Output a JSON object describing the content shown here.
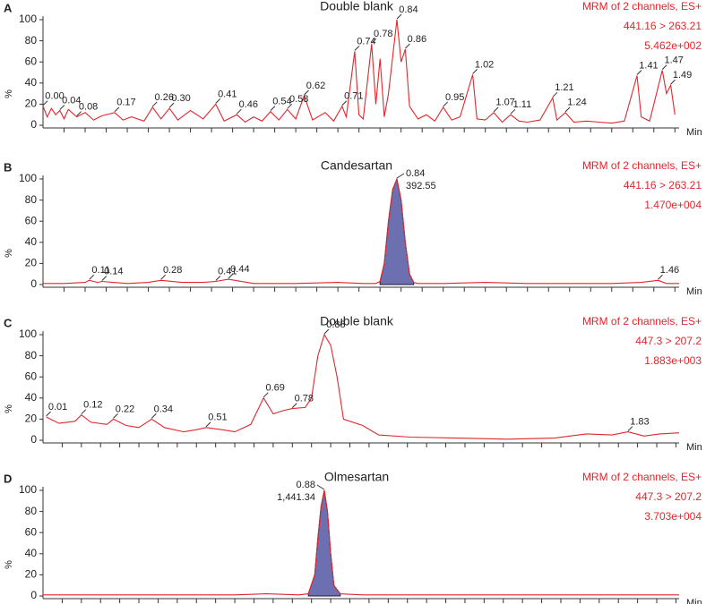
{
  "chart_data": [
    {
      "type": "line",
      "label": "A",
      "title": "Double blank",
      "info": [
        "MRM of 2 channels, ES+",
        "441.16 > 263.21",
        "5.462e+002"
      ],
      "y_label": "%",
      "x_label": "Min",
      "xlim": [
        0,
        1.51
      ],
      "ylim": [
        0,
        100
      ],
      "yticks": [
        0,
        20,
        40,
        60,
        80,
        100
      ],
      "xticks": [
        0.05,
        0.1,
        0.15,
        0.2,
        0.25,
        0.3,
        0.35,
        0.4,
        0.45,
        0.5,
        0.55,
        0.6,
        0.65,
        0.7,
        0.75,
        0.8,
        0.85,
        0.9,
        0.95,
        1.0,
        1.05,
        1.1,
        1.15,
        1.2,
        1.25,
        1.3,
        1.35,
        1.4,
        1.45,
        1.5
      ],
      "color": "#e3262d",
      "x": [
        0,
        0.01,
        0.02,
        0.03,
        0.04,
        0.05,
        0.06,
        0.08,
        0.1,
        0.12,
        0.14,
        0.17,
        0.19,
        0.21,
        0.24,
        0.26,
        0.28,
        0.3,
        0.32,
        0.35,
        0.38,
        0.41,
        0.43,
        0.46,
        0.48,
        0.5,
        0.52,
        0.54,
        0.56,
        0.58,
        0.6,
        0.62,
        0.64,
        0.67,
        0.69,
        0.71,
        0.72,
        0.74,
        0.75,
        0.76,
        0.78,
        0.79,
        0.8,
        0.81,
        0.82,
        0.84,
        0.85,
        0.86,
        0.87,
        0.89,
        0.91,
        0.93,
        0.95,
        0.97,
        0.99,
        1.02,
        1.03,
        1.05,
        1.07,
        1.09,
        1.11,
        1.13,
        1.15,
        1.18,
        1.21,
        1.22,
        1.24,
        1.26,
        1.29,
        1.32,
        1.35,
        1.38,
        1.41,
        1.42,
        1.44,
        1.47,
        1.48,
        1.49,
        1.5
      ],
      "values": [
        18,
        8,
        16,
        10,
        14,
        6,
        15,
        8,
        12,
        5,
        9,
        12,
        5,
        8,
        4,
        17,
        6,
        16,
        5,
        14,
        6,
        20,
        4,
        10,
        3,
        8,
        4,
        13,
        5,
        15,
        6,
        28,
        5,
        12,
        4,
        18,
        8,
        70,
        10,
        6,
        77,
        20,
        63,
        8,
        30,
        100,
        60,
        72,
        18,
        6,
        10,
        4,
        17,
        5,
        8,
        48,
        6,
        5,
        12,
        3,
        10,
        4,
        3,
        5,
        26,
        5,
        12,
        3,
        4,
        3,
        2,
        4,
        47,
        8,
        4,
        52,
        30,
        38,
        10
      ],
      "annotations": [
        {
          "x": 0.0,
          "y": 18,
          "label": "0.00"
        },
        {
          "x": 0.04,
          "y": 14,
          "label": "0.04"
        },
        {
          "x": 0.08,
          "y": 8,
          "label": "0.08"
        },
        {
          "x": 0.17,
          "y": 12,
          "label": "0.17"
        },
        {
          "x": 0.26,
          "y": 17,
          "label": "0.26"
        },
        {
          "x": 0.3,
          "y": 16,
          "label": "0.30"
        },
        {
          "x": 0.41,
          "y": 20,
          "label": "0.41"
        },
        {
          "x": 0.46,
          "y": 10,
          "label": "0.46"
        },
        {
          "x": 0.54,
          "y": 13,
          "label": "0.54"
        },
        {
          "x": 0.58,
          "y": 15,
          "label": "0.58"
        },
        {
          "x": 0.62,
          "y": 28,
          "label": "0.62"
        },
        {
          "x": 0.71,
          "y": 18,
          "label": "0.71"
        },
        {
          "x": 0.74,
          "y": 70,
          "label": "0.74"
        },
        {
          "x": 0.78,
          "y": 77,
          "label": "0.78"
        },
        {
          "x": 0.84,
          "y": 100,
          "label": "0.84"
        },
        {
          "x": 0.86,
          "y": 72,
          "label": "0.86"
        },
        {
          "x": 0.95,
          "y": 17,
          "label": "0.95"
        },
        {
          "x": 1.02,
          "y": 48,
          "label": "1.02"
        },
        {
          "x": 1.07,
          "y": 12,
          "label": "1.07"
        },
        {
          "x": 1.11,
          "y": 10,
          "label": "1.11"
        },
        {
          "x": 1.21,
          "y": 26,
          "label": "1.21"
        },
        {
          "x": 1.24,
          "y": 12,
          "label": "1.24"
        },
        {
          "x": 1.41,
          "y": 47,
          "label": "1.41"
        },
        {
          "x": 1.47,
          "y": 52,
          "label": "1.47"
        },
        {
          "x": 1.49,
          "y": 38,
          "label": "1.49"
        }
      ]
    },
    {
      "type": "line",
      "label": "B",
      "title": "Candesartan",
      "info": [
        "MRM of 2 channels, ES+",
        "441.16 > 263.21",
        "1.470e+004"
      ],
      "y_label": "%",
      "x_label": "Min",
      "xlim": [
        0,
        1.51
      ],
      "ylim": [
        0,
        100
      ],
      "yticks": [
        0,
        20,
        40,
        60,
        80,
        100
      ],
      "xticks": [
        0.05,
        0.1,
        0.15,
        0.2,
        0.25,
        0.3,
        0.35,
        0.4,
        0.45,
        0.5,
        0.55,
        0.6,
        0.65,
        0.7,
        0.75,
        0.8,
        0.85,
        0.9,
        0.95,
        1.0,
        1.05,
        1.1,
        1.15,
        1.2,
        1.25,
        1.3,
        1.35,
        1.4,
        1.45,
        1.5
      ],
      "color": "#e3262d",
      "fill": {
        "color": "#6d70b0",
        "from": 0.8,
        "to": 0.88
      },
      "x": [
        0,
        0.05,
        0.1,
        0.11,
        0.13,
        0.14,
        0.2,
        0.25,
        0.28,
        0.33,
        0.38,
        0.41,
        0.44,
        0.5,
        0.6,
        0.7,
        0.76,
        0.79,
        0.8,
        0.81,
        0.82,
        0.83,
        0.84,
        0.85,
        0.86,
        0.87,
        0.88,
        0.89,
        0.95,
        1.05,
        1.15,
        1.25,
        1.35,
        1.42,
        1.46,
        1.48,
        1.51
      ],
      "values": [
        1,
        1,
        2,
        4,
        2,
        3,
        1,
        2,
        4,
        2,
        2,
        3,
        5,
        1,
        1,
        2,
        1,
        1,
        3,
        20,
        60,
        90,
        100,
        80,
        40,
        10,
        2,
        1,
        1,
        2,
        1,
        1,
        1,
        2,
        4,
        1,
        1
      ],
      "annotations": [
        {
          "x": 0.84,
          "y": 100,
          "label": "0.84",
          "area": "392.55"
        },
        {
          "x": 0.11,
          "y": 4,
          "label": "0.11"
        },
        {
          "x": 0.14,
          "y": 3,
          "label": "0.14"
        },
        {
          "x": 0.28,
          "y": 4,
          "label": "0.28"
        },
        {
          "x": 0.41,
          "y": 3,
          "label": "0.41"
        },
        {
          "x": 0.44,
          "y": 5,
          "label": "0.44"
        },
        {
          "x": 1.46,
          "y": 4,
          "label": "1.46"
        }
      ]
    },
    {
      "type": "line",
      "label": "C",
      "title": "Double blank",
      "info": [
        "MRM of 2 channels, ES+",
        "447.3 > 207.2",
        "1.883e+003"
      ],
      "y_label": "%",
      "x_label": "Min",
      "xlim": [
        0,
        1.99
      ],
      "ylim": [
        0,
        100
      ],
      "yticks": [
        0,
        20,
        40,
        60,
        80,
        100
      ],
      "xticks": [
        0.06,
        0.12,
        0.18,
        0.24,
        0.3,
        0.36,
        0.42,
        0.48,
        0.54,
        0.6,
        0.66,
        0.72,
        0.78,
        0.84,
        0.9,
        0.96,
        1.02,
        1.08,
        1.14,
        1.2,
        1.26,
        1.32,
        1.38,
        1.44,
        1.5,
        1.56,
        1.62,
        1.68,
        1.74,
        1.8,
        1.86,
        1.92,
        1.98
      ],
      "color": "#e3262d",
      "x": [
        0.01,
        0.05,
        0.1,
        0.12,
        0.15,
        0.2,
        0.22,
        0.26,
        0.3,
        0.34,
        0.38,
        0.44,
        0.48,
        0.51,
        0.56,
        0.6,
        0.65,
        0.69,
        0.72,
        0.75,
        0.78,
        0.82,
        0.84,
        0.86,
        0.88,
        0.9,
        0.92,
        0.94,
        1.0,
        1.05,
        1.15,
        1.3,
        1.45,
        1.6,
        1.7,
        1.78,
        1.83,
        1.88,
        1.93,
        1.99
      ],
      "values": [
        22,
        16,
        18,
        24,
        17,
        15,
        20,
        14,
        12,
        20,
        12,
        8,
        10,
        12,
        10,
        8,
        15,
        40,
        25,
        28,
        30,
        31,
        40,
        80,
        100,
        90,
        60,
        20,
        14,
        5,
        3,
        2,
        1,
        2,
        6,
        5,
        8,
        4,
        6,
        7
      ],
      "annotations": [
        {
          "x": 0.01,
          "y": 22,
          "label": "0.01"
        },
        {
          "x": 0.12,
          "y": 24,
          "label": "0.12"
        },
        {
          "x": 0.22,
          "y": 20,
          "label": "0.22"
        },
        {
          "x": 0.34,
          "y": 20,
          "label": "0.34"
        },
        {
          "x": 0.51,
          "y": 12,
          "label": "0.51"
        },
        {
          "x": 0.69,
          "y": 40,
          "label": "0.69"
        },
        {
          "x": 0.78,
          "y": 30,
          "label": "0.78"
        },
        {
          "x": 0.88,
          "y": 100,
          "label": "0.88"
        },
        {
          "x": 1.83,
          "y": 8,
          "label": "1.83"
        }
      ]
    },
    {
      "type": "line",
      "label": "D",
      "title": "Olmesartan",
      "info": [
        "MRM of 2 channels, ES+",
        "447.3 > 207.2",
        "3.703e+004"
      ],
      "y_label": "%",
      "x_label": "Min",
      "xlim": [
        0,
        1.99
      ],
      "ylim": [
        0,
        100
      ],
      "yticks": [
        0,
        20,
        40,
        60,
        80,
        100
      ],
      "xticks": [
        0.06,
        0.12,
        0.18,
        0.24,
        0.3,
        0.36,
        0.42,
        0.48,
        0.54,
        0.6,
        0.66,
        0.72,
        0.78,
        0.84,
        0.9,
        0.96,
        1.02,
        1.08,
        1.14,
        1.2,
        1.26,
        1.32,
        1.38,
        1.44,
        1.5,
        1.56,
        1.62,
        1.68,
        1.74,
        1.8,
        1.86,
        1.92,
        1.98
      ],
      "color": "#e3262d",
      "fill": {
        "color": "#6d70b0",
        "from": 0.83,
        "to": 0.93
      },
      "x": [
        0,
        0.2,
        0.4,
        0.6,
        0.7,
        0.8,
        0.83,
        0.85,
        0.86,
        0.87,
        0.88,
        0.89,
        0.9,
        0.91,
        0.93,
        1.0,
        1.3,
        1.6,
        1.99
      ],
      "values": [
        1,
        1,
        1,
        1,
        2,
        1,
        2,
        20,
        55,
        85,
        100,
        80,
        40,
        10,
        2,
        1,
        1,
        1,
        1
      ],
      "annotations": [
        {
          "x": 0.88,
          "y": 100,
          "label": "0.88",
          "area": "1,441.34"
        }
      ]
    }
  ]
}
